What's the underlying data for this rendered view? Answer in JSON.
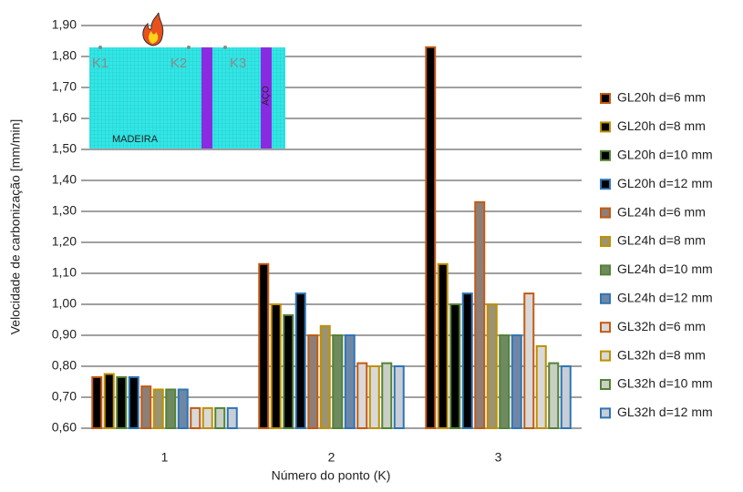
{
  "chart_data": {
    "type": "bar",
    "ylabel": "Velocidade de carbonização [mm/min]",
    "xlabel": "Número do ponto (K)",
    "categories": [
      "1",
      "2",
      "3"
    ],
    "ylim": [
      0.6,
      1.9
    ],
    "yticks": [
      {
        "value": 0.6,
        "label": "0,60"
      },
      {
        "value": 0.7,
        "label": "0,70"
      },
      {
        "value": 0.8,
        "label": "0,80"
      },
      {
        "value": 0.9,
        "label": "0,90"
      },
      {
        "value": 1.0,
        "label": "1,00"
      },
      {
        "value": 1.1,
        "label": "1,10"
      },
      {
        "value": 1.2,
        "label": "1,20"
      },
      {
        "value": 1.3,
        "label": "1,30"
      },
      {
        "value": 1.4,
        "label": "1,40"
      },
      {
        "value": 1.5,
        "label": "1,50"
      },
      {
        "value": 1.6,
        "label": "1,60"
      },
      {
        "value": 1.7,
        "label": "1,70"
      },
      {
        "value": 1.8,
        "label": "1,80"
      },
      {
        "value": 1.9,
        "label": "1,90"
      }
    ],
    "grid": true,
    "legend": "right",
    "series": [
      {
        "name": "GL20h d=6 mm",
        "color": "#000000",
        "edgecolor": "#c55a11",
        "values": [
          0.765,
          1.13,
          1.83
        ]
      },
      {
        "name": "GL20h d=8 mm",
        "color": "#000000",
        "edgecolor": "#bf9000",
        "values": [
          0.775,
          1.0,
          1.13
        ]
      },
      {
        "name": "GL20h d=10 mm",
        "color": "#000000",
        "edgecolor": "#548235",
        "values": [
          0.765,
          0.965,
          1.0
        ]
      },
      {
        "name": "GL20h d=12 mm",
        "color": "#000000",
        "edgecolor": "#2e75b6",
        "values": [
          0.765,
          1.035,
          1.035
        ]
      },
      {
        "name": "GL24h d=6 mm",
        "color": "#8c7f78",
        "edgecolor": "#c55a11",
        "values": [
          0.735,
          0.9,
          1.33
        ]
      },
      {
        "name": "GL24h d=8 mm",
        "color": "#9c9470",
        "edgecolor": "#bf9000",
        "values": [
          0.725,
          0.93,
          1.0
        ]
      },
      {
        "name": "GL24h d=10 mm",
        "color": "#6f8a60",
        "edgecolor": "#548235",
        "values": [
          0.725,
          0.9,
          0.9
        ]
      },
      {
        "name": "GL24h d=12 mm",
        "color": "#6f87a6",
        "edgecolor": "#2e75b6",
        "values": [
          0.725,
          0.9,
          0.9
        ]
      },
      {
        "name": "GL32h d=6 mm",
        "color": "#d9d9d9",
        "edgecolor": "#c55a11",
        "values": [
          0.665,
          0.81,
          1.035
        ]
      },
      {
        "name": "GL32h d=8 mm",
        "color": "#d9d9d9",
        "edgecolor": "#bf9000",
        "values": [
          0.665,
          0.8,
          0.865
        ]
      },
      {
        "name": "GL32h d=10 mm",
        "color": "#c9cfc4",
        "edgecolor": "#548235",
        "values": [
          0.665,
          0.81,
          0.81
        ]
      },
      {
        "name": "GL32h d=12 mm",
        "color": "#c9ced6",
        "edgecolor": "#2e75b6",
        "values": [
          0.665,
          0.8,
          0.8
        ]
      }
    ],
    "inset_labels": [
      "K1",
      "K2",
      "K3",
      "AÇO",
      "MADEIRA"
    ]
  }
}
